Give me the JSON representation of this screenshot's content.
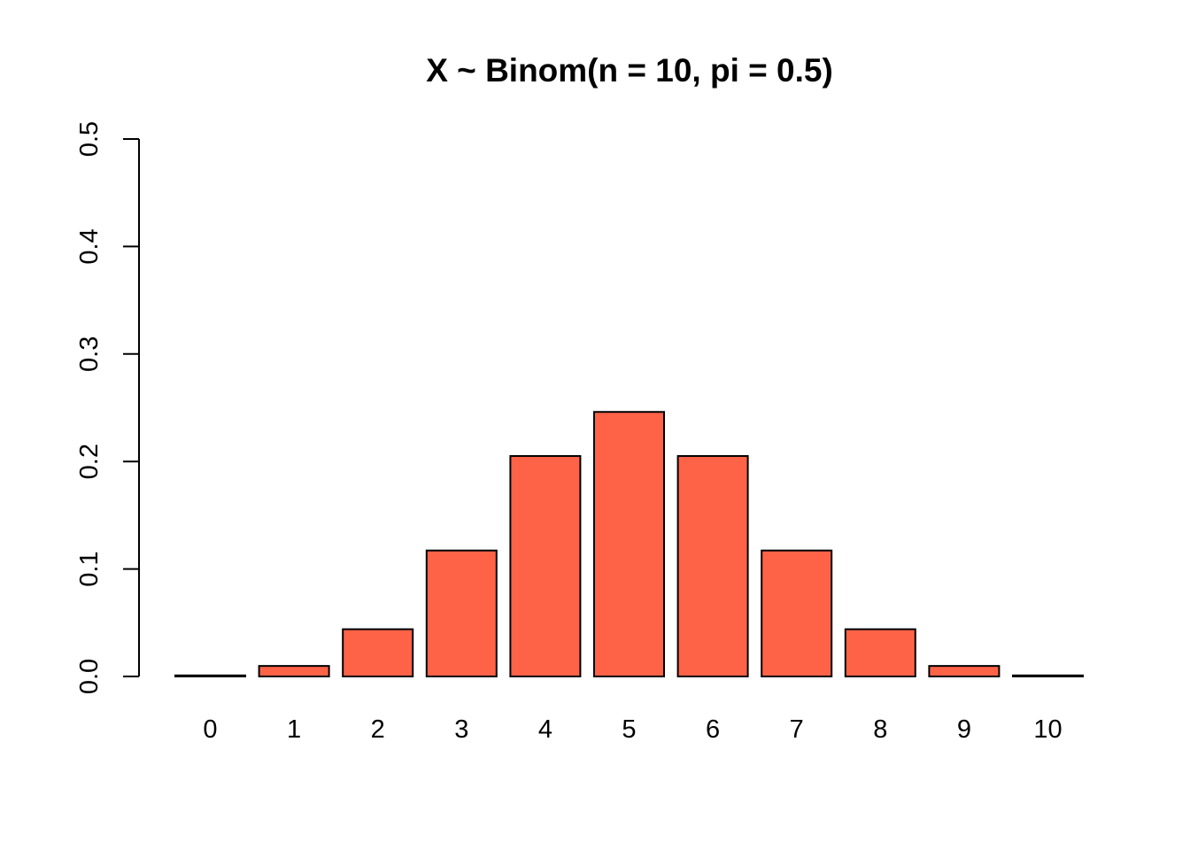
{
  "chart_data": {
    "type": "bar",
    "title": "X ~ Binom(n = 10, pi = 0.5)",
    "xlabel": "",
    "ylabel": "",
    "categories": [
      "0",
      "1",
      "2",
      "3",
      "4",
      "5",
      "6",
      "7",
      "8",
      "9",
      "10"
    ],
    "values": [
      0.000977,
      0.009766,
      0.043945,
      0.117188,
      0.205078,
      0.246094,
      0.205078,
      0.117188,
      0.043945,
      0.009766,
      0.000977
    ],
    "ylim": [
      0,
      0.5
    ],
    "yticks": [
      "0.0",
      "0.1",
      "0.2",
      "0.3",
      "0.4",
      "0.5"
    ],
    "bar_color": "#FF6347",
    "grid": false,
    "legend": "none"
  }
}
